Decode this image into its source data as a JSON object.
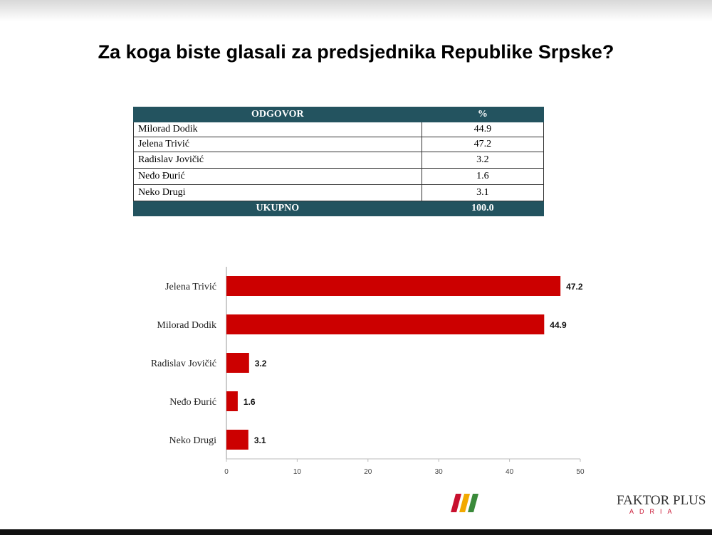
{
  "title": "Za koga biste glasali za predsjednika Republike Srpske?",
  "table": {
    "header": [
      "ODGOVOR",
      "%"
    ],
    "rows": [
      [
        "Milorad Dodik",
        "44.9"
      ],
      [
        "Jelena Trivić",
        "47.2"
      ],
      [
        "Radislav Jovičić",
        "3.2"
      ],
      [
        "Neđo Đurić",
        "1.6"
      ],
      [
        "Neko Drugi",
        "3.1"
      ]
    ],
    "footer": [
      "UKUPNO",
      "100.0"
    ]
  },
  "chart_data": {
    "type": "hbar",
    "categories": [
      "Jelena Trivić",
      "Milorad Dodik",
      "Radislav Jovičić",
      "Neđo Đurić",
      "Neko Drugi"
    ],
    "values": [
      47.2,
      44.9,
      3.2,
      1.6,
      3.1
    ],
    "color": "#cc0000",
    "xlim": [
      0,
      50
    ],
    "xticks": [
      0,
      10,
      20,
      30,
      40,
      50
    ]
  },
  "logo": {
    "name": "FAKTOR PLUS",
    "sub": "ADRIA"
  }
}
